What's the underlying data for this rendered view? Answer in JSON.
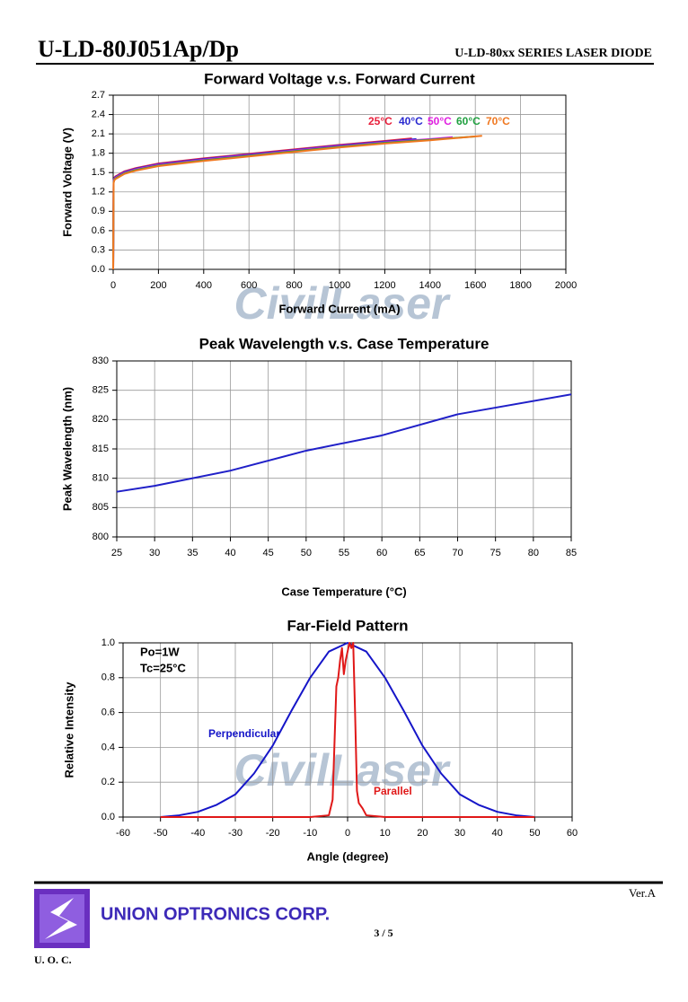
{
  "header": {
    "title": "U-LD-80J051Ap/Dp",
    "series": "U-LD-80xx SERIES LASER DIODE"
  },
  "watermark": "CivilLaser",
  "chart_data": [
    {
      "type": "line",
      "title": "Forward Voltage v.s. Forward Current",
      "x_label": "Forward Current (mA)",
      "y_label": "Forward Voltage (V)",
      "xlim": [
        0,
        2000
      ],
      "xticks": [
        0,
        200,
        400,
        600,
        800,
        1000,
        1200,
        1400,
        1600,
        1800,
        2000
      ],
      "ylim": [
        0,
        2.7
      ],
      "yticks": [
        {
          "value": 0,
          "label": "0.0"
        },
        0.3,
        0.6,
        0.9,
        1.2,
        1.5,
        1.8,
        2.1,
        2.4,
        2.7
      ],
      "grid": true,
      "series": [
        {
          "name": "25°C",
          "color": "#e8203c",
          "x": [
            0,
            2,
            5,
            10,
            20,
            50,
            100,
            200,
            400,
            600,
            800,
            1000,
            1200,
            1320
          ],
          "values": [
            0,
            1.38,
            1.42,
            1.44,
            1.46,
            1.52,
            1.57,
            1.64,
            1.72,
            1.79,
            1.86,
            1.93,
            1.99,
            2.03
          ]
        },
        {
          "name": "40°C",
          "color": "#2a2ad0",
          "x": [
            0,
            2,
            5,
            10,
            20,
            50,
            100,
            200,
            400,
            600,
            800,
            1000,
            1200,
            1340
          ],
          "values": [
            0,
            1.37,
            1.41,
            1.43,
            1.45,
            1.51,
            1.56,
            1.63,
            1.71,
            1.78,
            1.85,
            1.92,
            1.98,
            2.02
          ]
        },
        {
          "name": "50°C",
          "color": "#e020e0",
          "x": [
            0,
            2,
            5,
            10,
            20,
            50,
            100,
            200,
            400,
            600,
            800,
            1000,
            1200,
            1400,
            1500
          ],
          "values": [
            0,
            1.36,
            1.4,
            1.42,
            1.44,
            1.5,
            1.55,
            1.62,
            1.7,
            1.77,
            1.84,
            1.91,
            1.97,
            2.02,
            2.05
          ]
        },
        {
          "name": "60°C",
          "color": "#20a040",
          "x": [
            0,
            2,
            5,
            10,
            20,
            50,
            100,
            200,
            400,
            600,
            800,
            1000,
            1200,
            1400,
            1600
          ],
          "values": [
            0,
            1.35,
            1.39,
            1.41,
            1.43,
            1.49,
            1.54,
            1.61,
            1.69,
            1.76,
            1.83,
            1.9,
            1.96,
            2.01,
            2.06
          ]
        },
        {
          "name": "70°C",
          "color": "#f07820",
          "x": [
            0,
            2,
            5,
            10,
            20,
            50,
            100,
            200,
            400,
            600,
            800,
            1000,
            1200,
            1400,
            1630
          ],
          "values": [
            0,
            1.34,
            1.38,
            1.4,
            1.42,
            1.48,
            1.53,
            1.6,
            1.68,
            1.75,
            1.82,
            1.89,
            1.95,
            2.0,
            2.07
          ]
        }
      ]
    },
    {
      "type": "line",
      "title": "Peak Wavelength v.s. Case Temperature",
      "x_label": "Case Temperature (°C)",
      "y_label": "Peak Wavelength (nm)",
      "xlim": [
        25,
        85
      ],
      "xticks": [
        25,
        30,
        35,
        40,
        45,
        50,
        55,
        60,
        65,
        70,
        75,
        80,
        85
      ],
      "ylim": [
        800,
        830
      ],
      "yticks": [
        800,
        805,
        810,
        815,
        820,
        825,
        830
      ],
      "grid": true,
      "x": [
        25,
        30,
        40,
        50,
        60,
        70,
        85
      ],
      "series": [
        {
          "color": "#2020c8",
          "values": [
            807.7,
            808.7,
            811.3,
            814.7,
            817.3,
            820.9,
            824.3
          ]
        }
      ]
    },
    {
      "type": "line",
      "title": "Far-Field Pattern",
      "x_label": "Angle (degree)",
      "y_label": "Relative Intensity",
      "annotations": [
        "Po=1W",
        "Tc=25°C"
      ],
      "xlim": [
        -60,
        60
      ],
      "xticks": [
        -60,
        -50,
        -40,
        -30,
        -20,
        -10,
        0,
        10,
        20,
        30,
        40,
        50,
        60
      ],
      "ylim": [
        0,
        1
      ],
      "yticks": [
        {
          "value": 0,
          "label": "0.0"
        },
        0.2,
        0.4,
        0.6,
        0.8,
        {
          "value": 1,
          "label": "1.0"
        }
      ],
      "grid": true,
      "series": [
        {
          "name": "Perpendicular",
          "color": "#1515c8",
          "x": [
            -50,
            -45,
            -40,
            -35,
            -30,
            -25,
            -20,
            -15,
            -10,
            -5,
            0,
            5,
            10,
            15,
            20,
            25,
            30,
            35,
            40,
            45,
            50
          ],
          "values": [
            0,
            0.01,
            0.03,
            0.07,
            0.13,
            0.25,
            0.41,
            0.61,
            0.8,
            0.95,
            1,
            0.95,
            0.8,
            0.61,
            0.41,
            0.25,
            0.13,
            0.07,
            0.03,
            0.01,
            0
          ]
        },
        {
          "name": "Parallel",
          "color": "#e01818",
          "x": [
            -50,
            -10,
            -5,
            -4,
            -3,
            -2.5,
            -2,
            -1.5,
            -1,
            -0.5,
            0,
            0.5,
            1,
            1.5,
            2,
            2.5,
            3,
            4,
            5,
            10,
            50
          ],
          "values": [
            0,
            0,
            0.01,
            0.1,
            0.75,
            0.8,
            0.9,
            0.97,
            0.82,
            0.9,
            0.95,
            1,
            0.97,
            1,
            0.6,
            0.15,
            0.08,
            0.05,
            0.01,
            0,
            0
          ]
        }
      ]
    }
  ],
  "footer": {
    "version": "Ver.A",
    "company": "UNION OPTRONICS CORP.",
    "page": "3 / 5",
    "logo_text": "U. O. C."
  }
}
